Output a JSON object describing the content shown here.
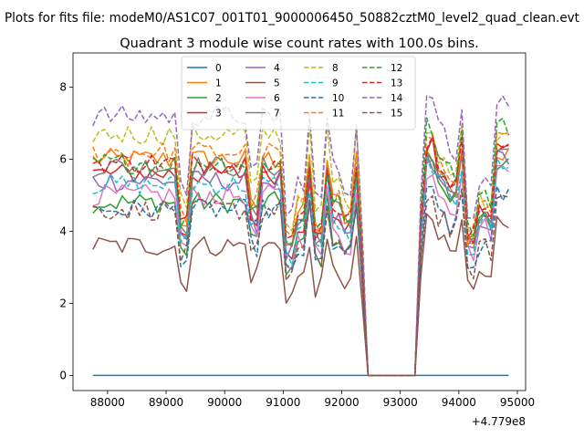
{
  "figure": {
    "suptitle": "Plots for fits file: modeM0/AS1C07_001T01_9000006450_50882cztM0_level2_quad_clean.evt",
    "title": "Quadrant 3 module wise count rates with 100.0s bins.",
    "offset_label": "+4.779e8"
  },
  "chart_data": {
    "type": "line",
    "title": "Quadrant 3 module wise count rates with 100.0s bins.",
    "xlabel": "",
    "ylabel": "",
    "x_offset": 477900000,
    "x_range": [
      87750,
      94800
    ],
    "xlim": [
      87410,
      95140
    ],
    "ylim": [
      -0.42,
      8.95
    ],
    "xticks": [
      88000,
      89000,
      90000,
      91000,
      92000,
      93000,
      94000,
      95000
    ],
    "yticks": [
      0,
      2,
      4,
      6,
      8
    ],
    "grid": false,
    "legend": {
      "position": "upper-center",
      "columns": 4
    },
    "gap": {
      "start": 92450,
      "end": 93300
    },
    "series": [
      {
        "name": "0",
        "color": "#1f77b4",
        "style": "solid",
        "pre": 0,
        "post": 0
      },
      {
        "name": "1",
        "color": "#ff7f0e",
        "style": "solid",
        "pre": 6.0,
        "post": 6.2
      },
      {
        "name": "2",
        "color": "#2ca02c",
        "style": "solid",
        "pre": 4.8,
        "post": 6.0
      },
      {
        "name": "3",
        "color": "#d62728",
        "style": "solid",
        "pre": 5.6,
        "post": 6.3
      },
      {
        "name": "4",
        "color": "#9467bd",
        "style": "solid",
        "pre": 5.4,
        "post": 6.0
      },
      {
        "name": "5",
        "color": "#8c564b",
        "style": "solid",
        "pre": 3.6,
        "post": 4.2
      },
      {
        "name": "6",
        "color": "#e377c2",
        "style": "solid",
        "pre": 5.0,
        "post": 5.7
      },
      {
        "name": "7",
        "color": "#7f7f7f",
        "style": "solid",
        "pre": 5.8,
        "post": 6.0
      },
      {
        "name": "8",
        "color": "#bcbd22",
        "style": "dashed",
        "pre": 6.7,
        "post": 6.8
      },
      {
        "name": "9",
        "color": "#17becf",
        "style": "dashed",
        "pre": 5.3,
        "post": 5.9
      },
      {
        "name": "10",
        "color": "#1f77b4",
        "style": "dashed",
        "pre": 4.6,
        "post": 5.0
      },
      {
        "name": "11",
        "color": "#ff7f0e",
        "style": "dashed",
        "pre": 6.2,
        "post": 6.5
      },
      {
        "name": "12",
        "color": "#2ca02c",
        "style": "dashed",
        "pre": 5.9,
        "post": 6.9
      },
      {
        "name": "13",
        "color": "#d62728",
        "style": "dashed",
        "pre": 5.9,
        "post": 6.4
      },
      {
        "name": "14",
        "color": "#9467bd",
        "style": "dashed",
        "pre": 7.2,
        "post": 7.6
      },
      {
        "name": "15",
        "color": "#8c564b",
        "style": "dashed",
        "pre": 4.6,
        "post": 4.9
      }
    ]
  }
}
